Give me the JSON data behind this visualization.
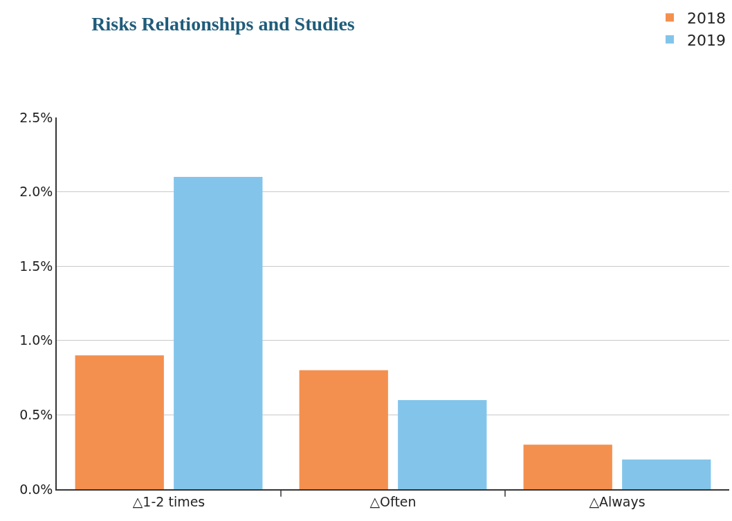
{
  "chart_data": {
    "type": "bar",
    "title": "Risks Relationships and Studies",
    "categories": [
      "△1-2 times",
      "△Often",
      "△Always"
    ],
    "series": [
      {
        "name": "2018",
        "color": "#f4904f",
        "values": [
          0.9,
          0.8,
          0.3
        ]
      },
      {
        "name": "2019",
        "color": "#83c5ea",
        "values": [
          2.1,
          0.6,
          0.2
        ]
      }
    ],
    "ylim": [
      0,
      2.5
    ],
    "yticks": [
      {
        "value": 0,
        "label": "0.0%"
      },
      {
        "value": 0.5,
        "label": "0.5%"
      },
      {
        "value": 1,
        "label": "1.0%"
      },
      {
        "value": 1.5,
        "label": "1.5%"
      },
      {
        "value": 2,
        "label": "2.0%"
      },
      {
        "value": 2.5,
        "label": "2.5%"
      }
    ],
    "grid": "y",
    "legend": "top right"
  }
}
